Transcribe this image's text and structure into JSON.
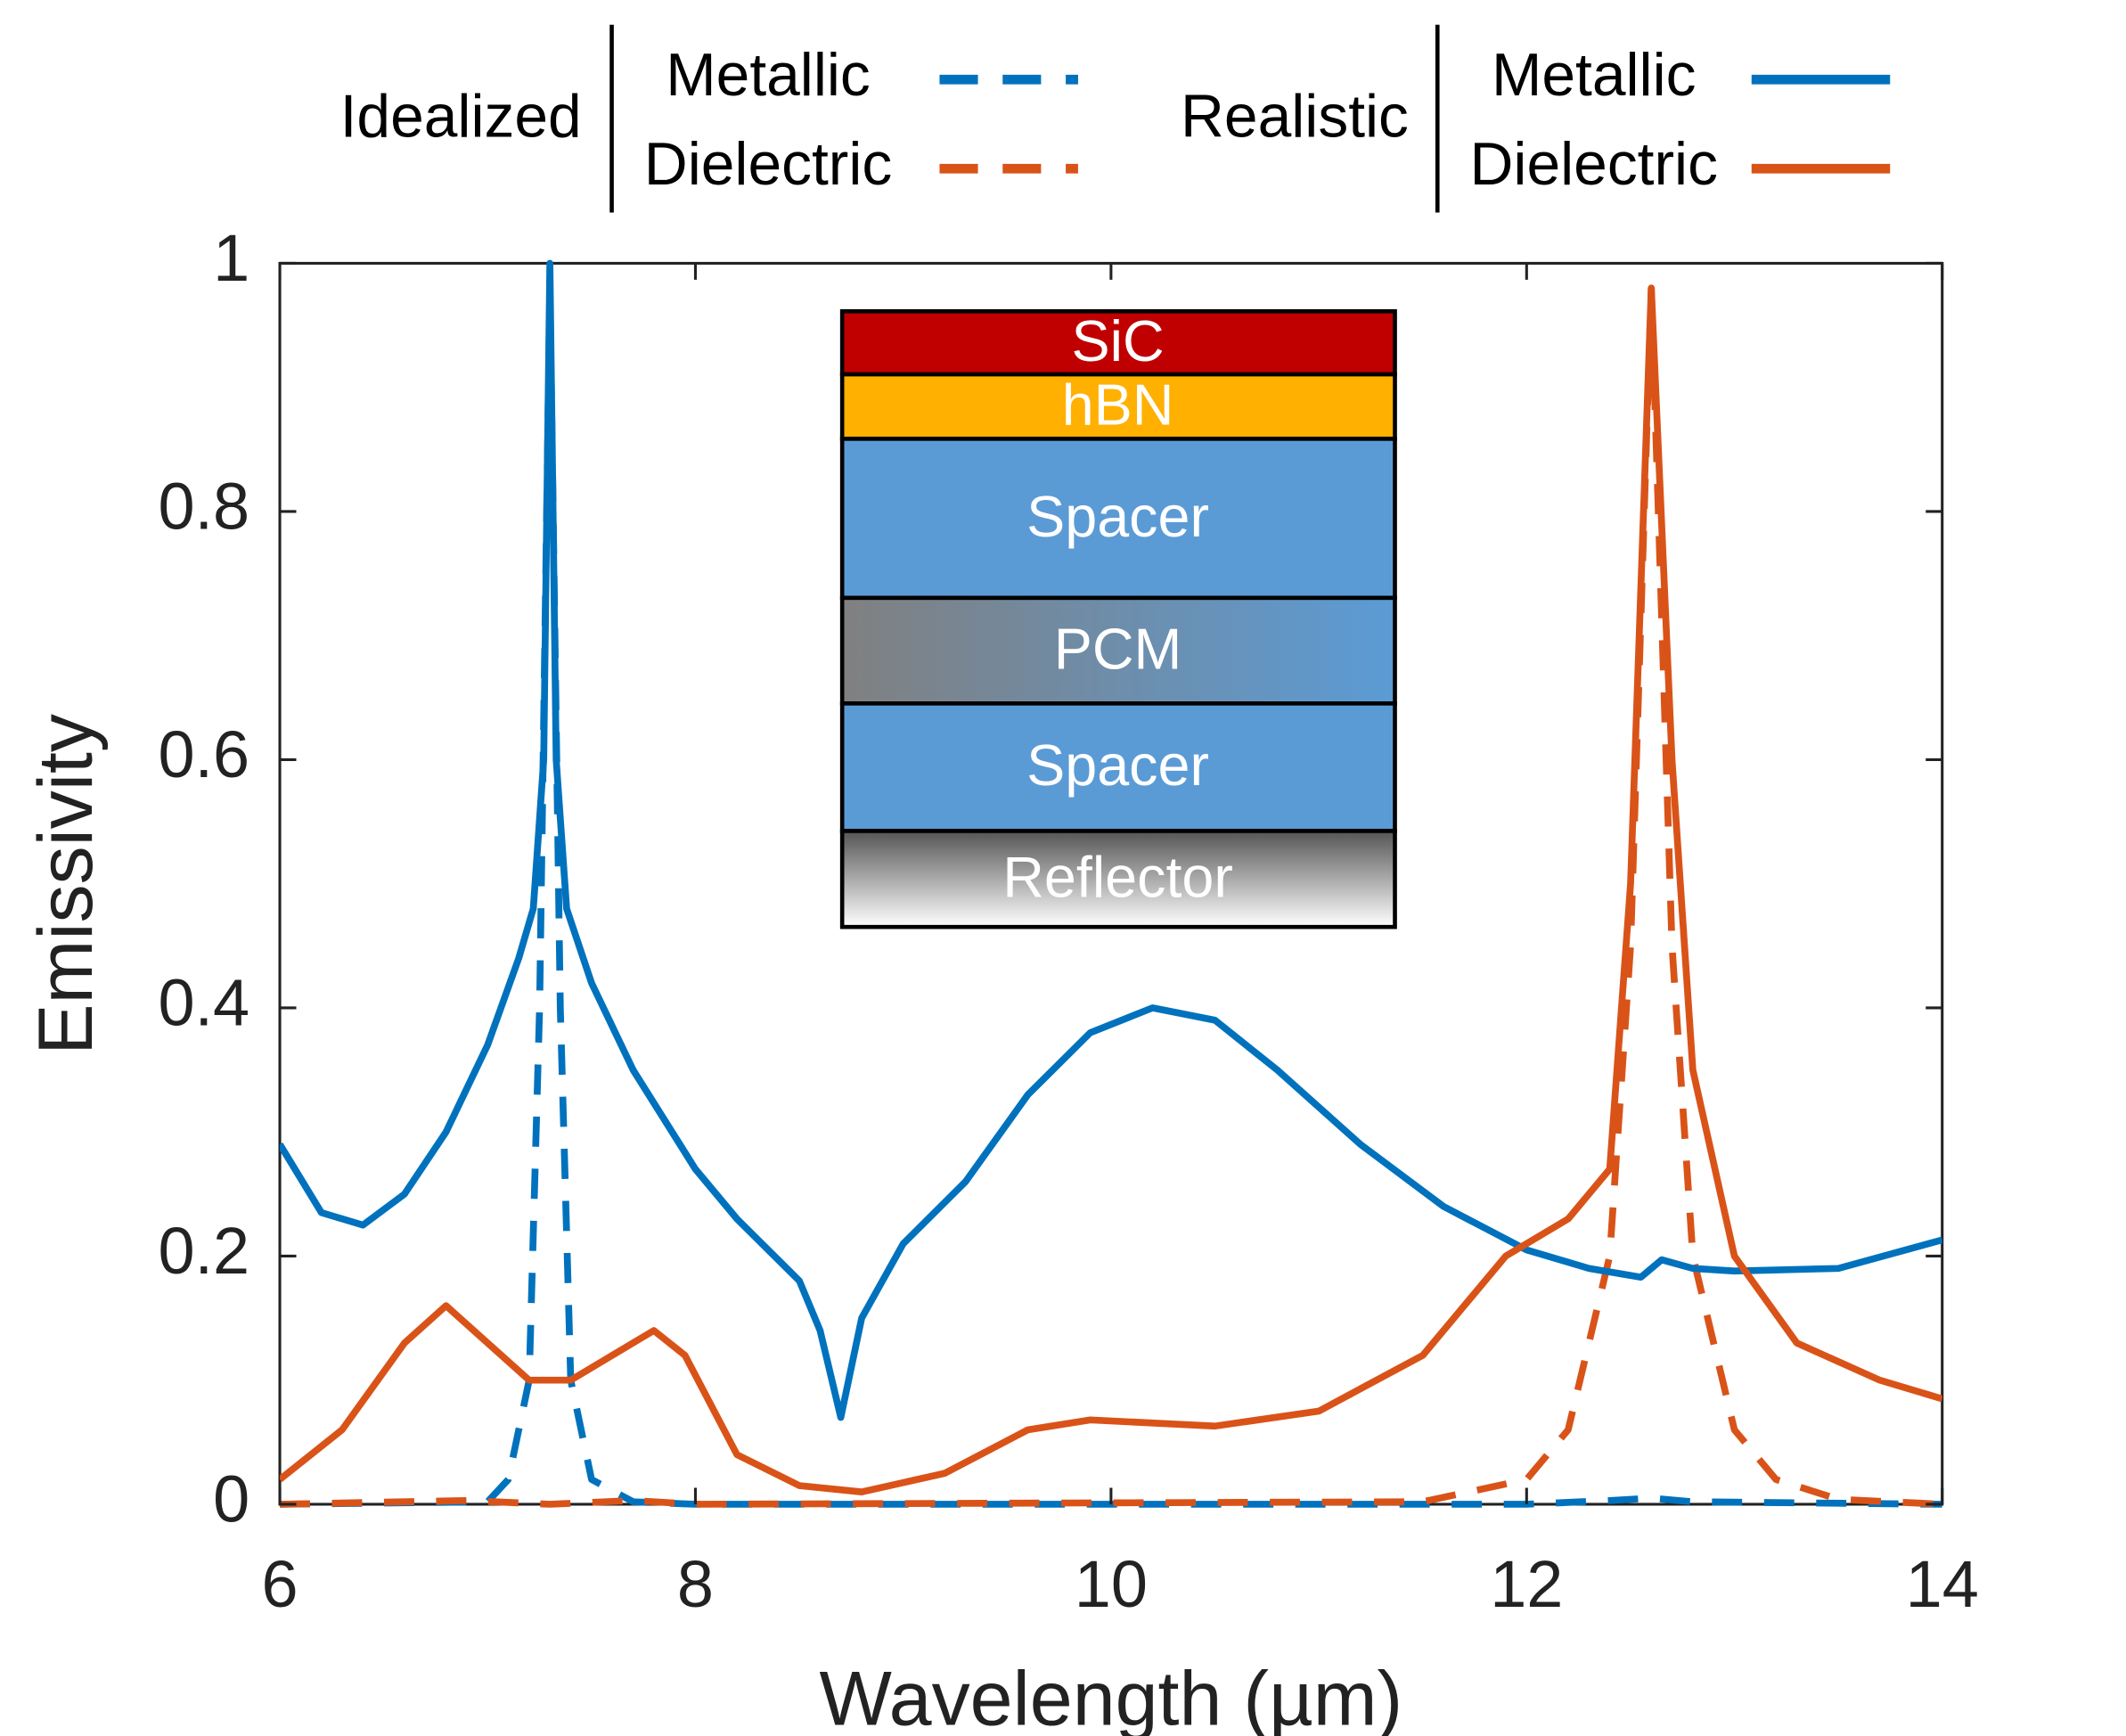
{
  "chart_data": {
    "type": "line",
    "xlabel": "Wavelength (µm)",
    "ylabel": "Emissivity",
    "xlim": [
      6,
      14
    ],
    "ylim": [
      0,
      1
    ],
    "xticks": [
      6,
      8,
      10,
      12,
      14
    ],
    "yticks": [
      0,
      0.2,
      0.4,
      0.6,
      0.8,
      1
    ],
    "series": [
      {
        "group": "Idealized",
        "name": "Metallic",
        "color": "#0072bd",
        "dashed": true,
        "x": [
          6,
          7.0,
          7.1,
          7.2,
          7.25,
          7.3,
          7.35,
          7.4,
          7.5,
          7.7,
          8,
          12,
          12.4,
          12.6,
          12.8,
          14
        ],
        "values": [
          0,
          0.002,
          0.02,
          0.1,
          0.4,
          0.98,
          0.4,
          0.1,
          0.02,
          0.002,
          0,
          0,
          0.003,
          0.005,
          0.002,
          0
        ]
      },
      {
        "group": "Idealized",
        "name": "Dielectric",
        "color": "#d95319",
        "dashed": true,
        "x": [
          6,
          6.9,
          7.3,
          7.7,
          8,
          11.5,
          12.0,
          12.2,
          12.4,
          12.5,
          12.6,
          12.7,
          12.8,
          13.0,
          13.2,
          13.5,
          14
        ],
        "values": [
          0,
          0.003,
          0,
          0.003,
          0,
          0.002,
          0.02,
          0.06,
          0.2,
          0.45,
          0.98,
          0.45,
          0.2,
          0.06,
          0.02,
          0.004,
          0
        ]
      },
      {
        "group": "Realistic",
        "name": "Metallic",
        "color": "#0072bd",
        "dashed": false,
        "x": [
          6,
          6.2,
          6.4,
          6.6,
          6.8,
          7.0,
          7.15,
          7.22,
          7.27,
          7.3,
          7.33,
          7.38,
          7.5,
          7.7,
          8.0,
          8.2,
          8.5,
          8.6,
          8.7,
          8.8,
          9.0,
          9.3,
          9.6,
          9.9,
          10.2,
          10.5,
          10.8,
          11.2,
          11.6,
          12.0,
          12.3,
          12.55,
          12.65,
          12.8,
          13.0,
          13.5,
          14
        ],
        "values": [
          0.29,
          0.235,
          0.225,
          0.25,
          0.3,
          0.37,
          0.44,
          0.48,
          0.6,
          1.0,
          0.6,
          0.48,
          0.42,
          0.35,
          0.27,
          0.23,
          0.18,
          0.14,
          0.07,
          0.15,
          0.21,
          0.26,
          0.33,
          0.38,
          0.4,
          0.39,
          0.35,
          0.29,
          0.24,
          0.205,
          0.19,
          0.183,
          0.197,
          0.19,
          0.188,
          0.19,
          0.213
        ]
      },
      {
        "group": "Realistic",
        "name": "Dielectric",
        "color": "#d95319",
        "dashed": false,
        "x": [
          6,
          6.3,
          6.6,
          6.8,
          7.0,
          7.2,
          7.4,
          7.6,
          7.8,
          7.95,
          8.2,
          8.5,
          8.8,
          9.2,
          9.6,
          9.9,
          10.5,
          11,
          11.5,
          11.9,
          12.2,
          12.4,
          12.5,
          12.6,
          12.7,
          12.8,
          13.0,
          13.3,
          13.7,
          14
        ],
        "values": [
          0.02,
          0.06,
          0.13,
          0.16,
          0.13,
          0.1,
          0.1,
          0.12,
          0.14,
          0.12,
          0.04,
          0.015,
          0.01,
          0.025,
          0.06,
          0.068,
          0.063,
          0.075,
          0.12,
          0.2,
          0.23,
          0.27,
          0.5,
          0.98,
          0.6,
          0.35,
          0.2,
          0.13,
          0.1,
          0.085
        ]
      }
    ],
    "inset": {
      "layers": [
        {
          "label": "SiC",
          "colors": [
            "#c00000"
          ]
        },
        {
          "label": "hBN",
          "colors": [
            "#ffb000"
          ]
        },
        {
          "label": "Spacer",
          "colors": [
            "#5b9bd5"
          ]
        },
        {
          "label": "PCM",
          "colors": [
            "#808080",
            "#5b9bd5"
          ]
        },
        {
          "label": "Spacer",
          "colors": [
            "#5b9bd5"
          ]
        },
        {
          "label": "Reflector",
          "colors": [
            "#555555",
            "#ffffff"
          ]
        }
      ]
    }
  }
}
